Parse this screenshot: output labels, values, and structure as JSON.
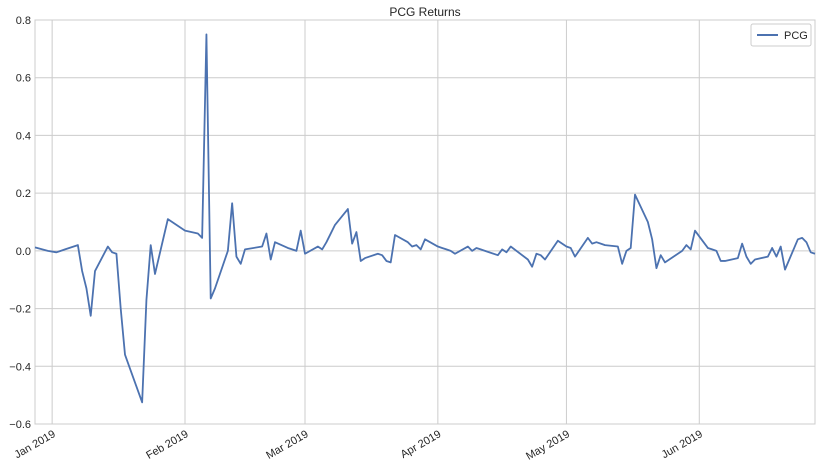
{
  "chart_data": {
    "type": "line",
    "title": "PCG Returns",
    "xlabel": "",
    "ylabel": "",
    "x_ticks": [
      "2019-01-01",
      "2019-02-01",
      "2019-03-01",
      "2019-04-01",
      "2019-05-01",
      "2019-06-01"
    ],
    "x_tick_labels": [
      "Jan 2019",
      "Feb 2019",
      "Mar 2019",
      "Apr 2019",
      "May 2019",
      "Jun 2019"
    ],
    "xlim": [
      "2018-12-28",
      "2019-06-28"
    ],
    "y_ticks": [
      -0.6,
      -0.4,
      -0.2,
      0.0,
      0.2,
      0.4,
      0.6,
      0.8
    ],
    "y_tick_labels": [
      "−0.6",
      "−0.4",
      "−0.2",
      "0.0",
      "0.2",
      "0.4",
      "0.6",
      "0.8"
    ],
    "ylim": [
      -0.6,
      0.8
    ],
    "grid": true,
    "legend_position": "top-right",
    "series": [
      {
        "name": "PCG",
        "color": "#4c72b0",
        "points": [
          [
            "2018-12-28",
            0.012
          ],
          [
            "2018-12-31",
            0.0
          ],
          [
            "2019-01-02",
            -0.005
          ],
          [
            "2019-01-03",
            0.0
          ],
          [
            "2019-01-04",
            0.005
          ],
          [
            "2019-01-07",
            0.02
          ],
          [
            "2019-01-08",
            -0.07
          ],
          [
            "2019-01-09",
            -0.13
          ],
          [
            "2019-01-10",
            -0.225
          ],
          [
            "2019-01-11",
            -0.07
          ],
          [
            "2019-01-14",
            0.015
          ],
          [
            "2019-01-15",
            -0.005
          ],
          [
            "2019-01-16",
            -0.01
          ],
          [
            "2019-01-17",
            -0.2
          ],
          [
            "2019-01-18",
            -0.36
          ],
          [
            "2019-01-22",
            -0.525
          ],
          [
            "2019-01-23",
            -0.17
          ],
          [
            "2019-01-24",
            0.02
          ],
          [
            "2019-01-25",
            -0.08
          ],
          [
            "2019-01-28",
            0.11
          ],
          [
            "2019-01-29",
            0.1
          ],
          [
            "2019-01-30",
            0.09
          ],
          [
            "2019-01-31",
            0.08
          ],
          [
            "2019-02-01",
            0.07
          ],
          [
            "2019-02-04",
            0.06
          ],
          [
            "2019-02-05",
            0.045
          ],
          [
            "2019-02-06",
            0.75
          ],
          [
            "2019-02-07",
            -0.165
          ],
          [
            "2019-02-08",
            -0.13
          ],
          [
            "2019-02-11",
            0.0
          ],
          [
            "2019-02-12",
            0.165
          ],
          [
            "2019-02-13",
            -0.02
          ],
          [
            "2019-02-14",
            -0.045
          ],
          [
            "2019-02-15",
            0.005
          ],
          [
            "2019-02-19",
            0.015
          ],
          [
            "2019-02-20",
            0.06
          ],
          [
            "2019-02-21",
            -0.03
          ],
          [
            "2019-02-22",
            0.03
          ],
          [
            "2019-02-25",
            0.01
          ],
          [
            "2019-02-26",
            0.005
          ],
          [
            "2019-02-27",
            0.0
          ],
          [
            "2019-02-28",
            0.07
          ],
          [
            "2019-03-01",
            -0.01
          ],
          [
            "2019-03-04",
            0.015
          ],
          [
            "2019-03-05",
            0.005
          ],
          [
            "2019-03-06",
            0.03
          ],
          [
            "2019-03-07",
            0.06
          ],
          [
            "2019-03-08",
            0.09
          ],
          [
            "2019-03-11",
            0.145
          ],
          [
            "2019-03-12",
            0.025
          ],
          [
            "2019-03-13",
            0.065
          ],
          [
            "2019-03-14",
            -0.035
          ],
          [
            "2019-03-15",
            -0.025
          ],
          [
            "2019-03-18",
            -0.01
          ],
          [
            "2019-03-19",
            -0.015
          ],
          [
            "2019-03-20",
            -0.035
          ],
          [
            "2019-03-21",
            -0.04
          ],
          [
            "2019-03-22",
            0.055
          ],
          [
            "2019-03-25",
            0.03
          ],
          [
            "2019-03-26",
            0.015
          ],
          [
            "2019-03-27",
            0.02
          ],
          [
            "2019-03-28",
            0.005
          ],
          [
            "2019-03-29",
            0.04
          ],
          [
            "2019-04-01",
            0.015
          ],
          [
            "2019-04-02",
            0.01
          ],
          [
            "2019-04-03",
            0.005
          ],
          [
            "2019-04-04",
            0.0
          ],
          [
            "2019-04-05",
            -0.01
          ],
          [
            "2019-04-08",
            0.015
          ],
          [
            "2019-04-09",
            0.0
          ],
          [
            "2019-04-10",
            0.01
          ],
          [
            "2019-04-11",
            0.005
          ],
          [
            "2019-04-12",
            0.0
          ],
          [
            "2019-04-15",
            -0.015
          ],
          [
            "2019-04-16",
            0.005
          ],
          [
            "2019-04-17",
            -0.005
          ],
          [
            "2019-04-18",
            0.015
          ],
          [
            "2019-04-22",
            -0.03
          ],
          [
            "2019-04-23",
            -0.055
          ],
          [
            "2019-04-24",
            -0.01
          ],
          [
            "2019-04-25",
            -0.015
          ],
          [
            "2019-04-26",
            -0.03
          ],
          [
            "2019-04-29",
            0.035
          ],
          [
            "2019-04-30",
            0.025
          ],
          [
            "2019-05-01",
            0.015
          ],
          [
            "2019-05-02",
            0.01
          ],
          [
            "2019-05-03",
            -0.02
          ],
          [
            "2019-05-06",
            0.045
          ],
          [
            "2019-05-07",
            0.025
          ],
          [
            "2019-05-08",
            0.03
          ],
          [
            "2019-05-09",
            0.025
          ],
          [
            "2019-05-10",
            0.02
          ],
          [
            "2019-05-13",
            0.015
          ],
          [
            "2019-05-14",
            -0.045
          ],
          [
            "2019-05-15",
            0.0
          ],
          [
            "2019-05-16",
            0.01
          ],
          [
            "2019-05-17",
            0.195
          ],
          [
            "2019-05-20",
            0.1
          ],
          [
            "2019-05-21",
            0.04
          ],
          [
            "2019-05-22",
            -0.06
          ],
          [
            "2019-05-23",
            -0.015
          ],
          [
            "2019-05-24",
            -0.04
          ],
          [
            "2019-05-28",
            0.0
          ],
          [
            "2019-05-29",
            0.02
          ],
          [
            "2019-05-30",
            0.005
          ],
          [
            "2019-05-31",
            0.07
          ],
          [
            "2019-06-03",
            0.01
          ],
          [
            "2019-06-04",
            0.005
          ],
          [
            "2019-06-05",
            0.0
          ],
          [
            "2019-06-06",
            -0.035
          ],
          [
            "2019-06-07",
            -0.035
          ],
          [
            "2019-06-10",
            -0.025
          ],
          [
            "2019-06-11",
            0.025
          ],
          [
            "2019-06-12",
            -0.02
          ],
          [
            "2019-06-13",
            -0.045
          ],
          [
            "2019-06-14",
            -0.03
          ],
          [
            "2019-06-17",
            -0.02
          ],
          [
            "2019-06-18",
            0.01
          ],
          [
            "2019-06-19",
            -0.02
          ],
          [
            "2019-06-20",
            0.015
          ],
          [
            "2019-06-21",
            -0.065
          ],
          [
            "2019-06-24",
            0.04
          ],
          [
            "2019-06-25",
            0.045
          ],
          [
            "2019-06-26",
            0.03
          ],
          [
            "2019-06-27",
            -0.005
          ],
          [
            "2019-06-28",
            -0.01
          ]
        ]
      }
    ]
  }
}
